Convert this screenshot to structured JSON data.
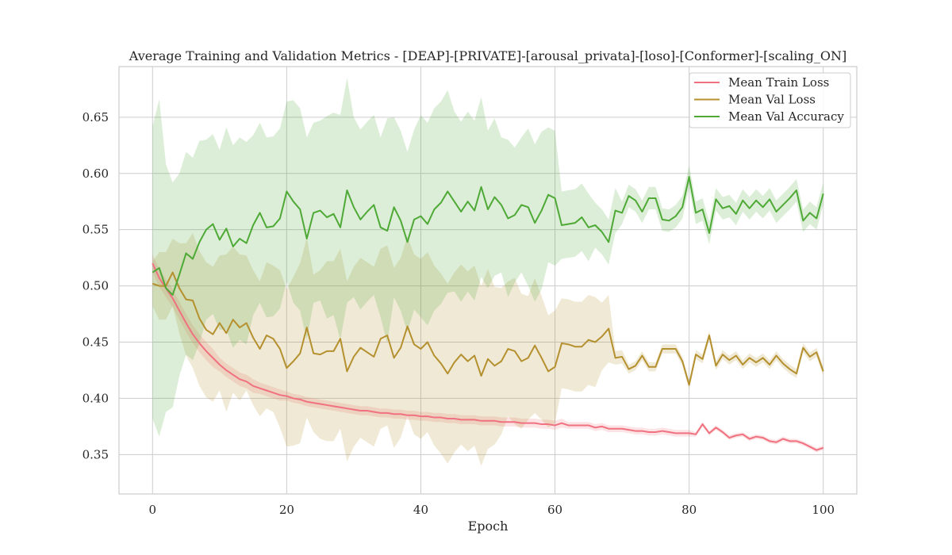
{
  "chart_data": {
    "type": "line",
    "title": "Average Training and Validation Metrics - [DEAP]-[PRIVATE]-[arousal_privata]-[loso]-[Conformer]-[scaling_ON]",
    "xlabel": "Epoch",
    "ylabel": "",
    "xlim": [
      -5,
      105
    ],
    "ylim": [
      0.315,
      0.695
    ],
    "xticks": [
      0,
      20,
      40,
      60,
      80,
      100
    ],
    "yticks": [
      0.35,
      0.4,
      0.45,
      0.5,
      0.55,
      0.6,
      0.65
    ],
    "xtick_labels": [
      "0",
      "20",
      "40",
      "60",
      "80",
      "100"
    ],
    "ytick_labels": [
      "0.35",
      "0.40",
      "0.45",
      "0.50",
      "0.55",
      "0.60",
      "0.65"
    ],
    "grid": true,
    "legend_position": "top-right",
    "series": [
      {
        "name": "Mean Train Loss",
        "color": "#f0717f",
        "x_start": 0,
        "values": [
          0.52,
          0.507,
          0.498,
          0.489,
          0.478,
          0.467,
          0.457,
          0.449,
          0.442,
          0.436,
          0.43,
          0.425,
          0.421,
          0.417,
          0.415,
          0.411,
          0.409,
          0.407,
          0.405,
          0.403,
          0.402,
          0.4,
          0.399,
          0.397,
          0.396,
          0.395,
          0.394,
          0.393,
          0.392,
          0.391,
          0.39,
          0.389,
          0.389,
          0.388,
          0.387,
          0.387,
          0.386,
          0.386,
          0.385,
          0.385,
          0.384,
          0.384,
          0.383,
          0.383,
          0.382,
          0.382,
          0.381,
          0.381,
          0.381,
          0.38,
          0.38,
          0.38,
          0.379,
          0.379,
          0.379,
          0.378,
          0.378,
          0.378,
          0.377,
          0.377,
          0.376,
          0.378,
          0.376,
          0.376,
          0.376,
          0.376,
          0.374,
          0.375,
          0.373,
          0.373,
          0.373,
          0.372,
          0.371,
          0.371,
          0.37,
          0.37,
          0.371,
          0.37,
          0.369,
          0.369,
          0.369,
          0.368,
          0.377,
          0.369,
          0.374,
          0.37,
          0.365,
          0.367,
          0.368,
          0.364,
          0.366,
          0.365,
          0.362,
          0.361,
          0.364,
          0.362,
          0.362,
          0.36,
          0.357,
          0.354,
          0.356
        ],
        "band_width": [
          0.008,
          0.008,
          0.008,
          0.008,
          0.008,
          0.008,
          0.008,
          0.008,
          0.008,
          0.008,
          0.006,
          0.006,
          0.006,
          0.006,
          0.006,
          0.006,
          0.005,
          0.005,
          0.005,
          0.005,
          0.004,
          0.004,
          0.004,
          0.004,
          0.004,
          0.004,
          0.004,
          0.004,
          0.004,
          0.004,
          0.004,
          0.004,
          0.004,
          0.004,
          0.004,
          0.004,
          0.004,
          0.004,
          0.004,
          0.004,
          0.004,
          0.004,
          0.004,
          0.004,
          0.004,
          0.004,
          0.004,
          0.004,
          0.004,
          0.004,
          0.004,
          0.004,
          0.004,
          0.004,
          0.004,
          0.004,
          0.004,
          0.004,
          0.004,
          0.004,
          0.004,
          0.004,
          0.003,
          0.003,
          0.003,
          0.003,
          0.003,
          0.003,
          0.003,
          0.003,
          0.003,
          0.003,
          0.003,
          0.003,
          0.003,
          0.003,
          0.003,
          0.003,
          0.003,
          0.003,
          0.003,
          0.002,
          0.002,
          0.002,
          0.002,
          0.002,
          0.002,
          0.002,
          0.002,
          0.002,
          0.002,
          0.002,
          0.002,
          0.002,
          0.002,
          0.002,
          0.002,
          0.002,
          0.002,
          0.002,
          0.002
        ]
      },
      {
        "name": "Mean Val Loss",
        "color": "#b4902f",
        "x_start": 0,
        "values": [
          0.502,
          0.5,
          0.5,
          0.512,
          0.498,
          0.488,
          0.487,
          0.471,
          0.461,
          0.457,
          0.467,
          0.458,
          0.47,
          0.463,
          0.467,
          0.454,
          0.444,
          0.456,
          0.453,
          0.444,
          0.427,
          0.433,
          0.44,
          0.463,
          0.44,
          0.439,
          0.442,
          0.442,
          0.453,
          0.424,
          0.437,
          0.445,
          0.441,
          0.437,
          0.453,
          0.456,
          0.436,
          0.445,
          0.464,
          0.448,
          0.444,
          0.45,
          0.438,
          0.431,
          0.422,
          0.432,
          0.439,
          0.433,
          0.438,
          0.42,
          0.435,
          0.429,
          0.433,
          0.444,
          0.442,
          0.433,
          0.436,
          0.447,
          0.436,
          0.424,
          0.428,
          0.449,
          0.448,
          0.446,
          0.446,
          0.452,
          0.45,
          0.455,
          0.462,
          0.436,
          0.437,
          0.426,
          0.429,
          0.438,
          0.428,
          0.428,
          0.444,
          0.444,
          0.444,
          0.433,
          0.412,
          0.439,
          0.435,
          0.456,
          0.429,
          0.439,
          0.434,
          0.438,
          0.43,
          0.436,
          0.432,
          0.436,
          0.43,
          0.438,
          0.431,
          0.426,
          0.422,
          0.445,
          0.437,
          0.441,
          0.424
        ],
        "band_width": [
          0.02,
          0.03,
          0.03,
          0.03,
          0.04,
          0.05,
          0.06,
          0.06,
          0.06,
          0.06,
          0.06,
          0.07,
          0.065,
          0.065,
          0.06,
          0.06,
          0.06,
          0.065,
          0.065,
          0.07,
          0.07,
          0.075,
          0.08,
          0.08,
          0.07,
          0.075,
          0.08,
          0.08,
          0.08,
          0.08,
          0.08,
          0.08,
          0.08,
          0.08,
          0.08,
          0.08,
          0.08,
          0.08,
          0.08,
          0.08,
          0.08,
          0.08,
          0.08,
          0.08,
          0.08,
          0.08,
          0.08,
          0.08,
          0.08,
          0.08,
          0.08,
          0.07,
          0.065,
          0.06,
          0.065,
          0.06,
          0.055,
          0.06,
          0.055,
          0.05,
          0.05,
          0.04,
          0.04,
          0.04,
          0.04,
          0.04,
          0.04,
          0.03,
          0.03,
          0.006,
          0.006,
          0.004,
          0.004,
          0.004,
          0.004,
          0.004,
          0.004,
          0.004,
          0.004,
          0.004,
          0.004,
          0.004,
          0.004,
          0.004,
          0.004,
          0.004,
          0.004,
          0.004,
          0.004,
          0.004,
          0.004,
          0.004,
          0.004,
          0.004,
          0.004,
          0.004,
          0.004,
          0.004,
          0.004,
          0.004,
          0.004
        ]
      },
      {
        "name": "Mean Val Accuracy",
        "color": "#4ea936",
        "x_start": 0,
        "values": [
          0.512,
          0.516,
          0.498,
          0.492,
          0.51,
          0.529,
          0.524,
          0.539,
          0.55,
          0.555,
          0.541,
          0.551,
          0.535,
          0.542,
          0.538,
          0.554,
          0.565,
          0.552,
          0.553,
          0.56,
          0.584,
          0.575,
          0.568,
          0.542,
          0.565,
          0.567,
          0.561,
          0.564,
          0.552,
          0.585,
          0.57,
          0.559,
          0.566,
          0.572,
          0.552,
          0.549,
          0.57,
          0.558,
          0.539,
          0.559,
          0.562,
          0.555,
          0.568,
          0.574,
          0.584,
          0.575,
          0.566,
          0.575,
          0.567,
          0.588,
          0.568,
          0.579,
          0.572,
          0.56,
          0.563,
          0.572,
          0.57,
          0.556,
          0.567,
          0.581,
          0.578,
          0.554,
          0.555,
          0.556,
          0.561,
          0.552,
          0.554,
          0.548,
          0.539,
          0.567,
          0.565,
          0.58,
          0.576,
          0.566,
          0.578,
          0.578,
          0.559,
          0.558,
          0.562,
          0.57,
          0.597,
          0.565,
          0.568,
          0.547,
          0.577,
          0.569,
          0.571,
          0.564,
          0.576,
          0.569,
          0.576,
          0.57,
          0.577,
          0.566,
          0.572,
          0.578,
          0.585,
          0.558,
          0.565,
          0.56,
          0.582
        ],
        "band_width": [
          0.13,
          0.15,
          0.11,
          0.1,
          0.09,
          0.09,
          0.09,
          0.09,
          0.08,
          0.08,
          0.08,
          0.09,
          0.09,
          0.09,
          0.09,
          0.08,
          0.08,
          0.08,
          0.08,
          0.08,
          0.08,
          0.09,
          0.09,
          0.09,
          0.08,
          0.08,
          0.09,
          0.09,
          0.1,
          0.1,
          0.08,
          0.08,
          0.08,
          0.08,
          0.08,
          0.1,
          0.08,
          0.08,
          0.08,
          0.08,
          0.09,
          0.09,
          0.09,
          0.09,
          0.09,
          0.08,
          0.08,
          0.08,
          0.08,
          0.08,
          0.07,
          0.07,
          0.06,
          0.07,
          0.06,
          0.06,
          0.07,
          0.07,
          0.07,
          0.06,
          0.06,
          0.03,
          0.03,
          0.03,
          0.03,
          0.03,
          0.02,
          0.02,
          0.02,
          0.02,
          0.01,
          0.01,
          0.01,
          0.01,
          0.01,
          0.01,
          0.01,
          0.01,
          0.01,
          0.01,
          0.01,
          0.01,
          0.01,
          0.01,
          0.01,
          0.01,
          0.01,
          0.01,
          0.01,
          0.01,
          0.01,
          0.01,
          0.01,
          0.01,
          0.01,
          0.01,
          0.01,
          0.01,
          0.01,
          0.01,
          0.01
        ]
      }
    ]
  }
}
